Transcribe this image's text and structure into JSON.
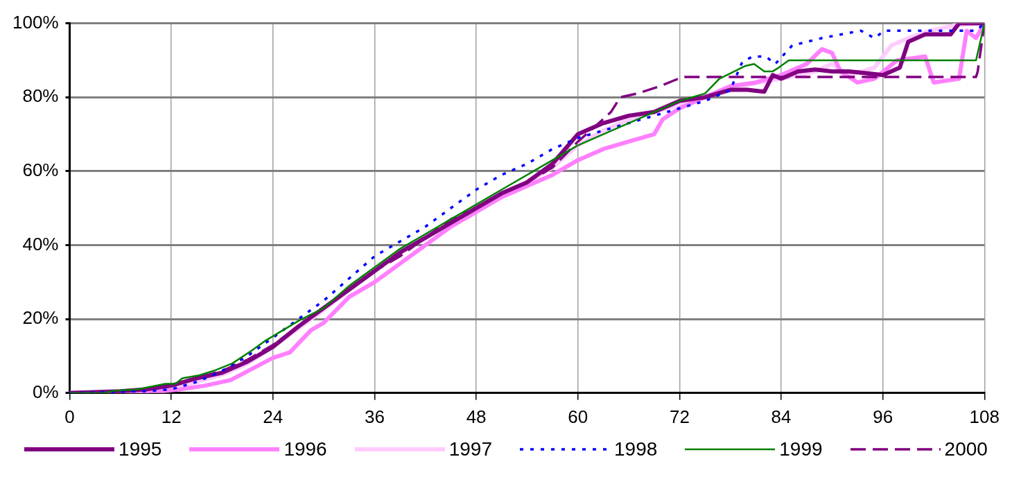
{
  "chart_data": {
    "type": "line",
    "xlim": [
      0,
      108
    ],
    "xticks": [
      0,
      12,
      24,
      36,
      48,
      60,
      72,
      84,
      96,
      108
    ],
    "ylim": [
      0,
      100
    ],
    "yticks": [
      {
        "value": 0,
        "label": "0%"
      },
      {
        "value": 20,
        "label": "20%"
      },
      {
        "value": 40,
        "label": "40%"
      },
      {
        "value": 60,
        "label": "60%"
      },
      {
        "value": 80,
        "label": "80%"
      },
      {
        "value": 100,
        "label": "100%"
      }
    ],
    "grid": true,
    "legend": "bottom",
    "marker": "none",
    "series": [
      {
        "name": "1995",
        "color": "#800080",
        "line_style": "solid",
        "x": [
          0,
          6,
          9,
          12,
          15,
          18,
          21,
          24,
          27,
          30,
          33,
          36,
          39,
          42,
          45,
          48,
          51,
          54,
          57,
          60,
          63,
          66,
          69,
          72,
          75,
          78,
          80,
          82,
          83,
          84,
          86,
          88,
          90,
          92,
          94,
          96,
          98,
          99,
          101,
          104,
          105,
          106,
          108
        ],
        "values": [
          0,
          0.5,
          1,
          2,
          4,
          5.5,
          8.5,
          12.5,
          18,
          23,
          28,
          33,
          38,
          42,
          46,
          50,
          54,
          57,
          62,
          70,
          73,
          75,
          76,
          79,
          80,
          82,
          82,
          81.5,
          86,
          85,
          87,
          87.5,
          87,
          87,
          86.5,
          86,
          88,
          95,
          97,
          97,
          100,
          100,
          100
        ]
      },
      {
        "name": "1996",
        "color": "#ff80ff",
        "line_style": "solid",
        "x": [
          0,
          9,
          13,
          16,
          19,
          21.5,
          24,
          26,
          28.5,
          30,
          33,
          36,
          39,
          42,
          45,
          48,
          51,
          54,
          57,
          60,
          63,
          66,
          69,
          70,
          72,
          75,
          78,
          81,
          84,
          87,
          88.8,
          90,
          91,
          93,
          95,
          97.7,
          101,
          102,
          105,
          105.9,
          107,
          108
        ],
        "values": [
          0,
          0,
          1,
          2,
          3.5,
          6.5,
          9.5,
          11,
          17,
          19,
          26,
          30,
          35,
          40,
          45,
          49,
          53,
          56,
          59,
          63,
          66,
          68,
          70,
          74,
          77,
          80,
          83,
          84,
          86,
          89,
          93,
          92,
          87,
          84,
          85,
          90,
          91,
          84,
          85,
          98,
          96,
          100
        ]
      },
      {
        "name": "1997",
        "color": "#ffccff",
        "line_style": "solid",
        "x": [
          0,
          9,
          12,
          15,
          18,
          21,
          24,
          27,
          30,
          33,
          36,
          39,
          42,
          45,
          48,
          51,
          54,
          57,
          60,
          63,
          66,
          69,
          72,
          76,
          79,
          84,
          88,
          90,
          92,
          95,
          97,
          99,
          101.6,
          104.7,
          108
        ],
        "values": [
          0,
          0.5,
          1.5,
          3,
          5,
          8,
          12.5,
          17.5,
          22.5,
          28,
          33,
          38,
          42,
          46,
          50,
          54,
          57,
          61,
          67,
          71,
          74,
          76,
          78,
          81,
          83,
          85,
          87,
          89,
          86,
          88,
          94,
          96,
          98,
          99.5,
          100
        ]
      },
      {
        "name": "1998",
        "color": "#0000ff",
        "line_style": "dotted",
        "x": [
          0,
          9,
          12,
          15,
          18,
          21,
          24,
          27,
          30,
          33,
          36,
          39,
          42,
          45,
          48,
          51,
          54,
          57,
          60,
          63,
          66,
          69,
          72,
          75,
          78,
          79.4,
          80.6,
          82.2,
          83.3,
          85.3,
          88.8,
          93.4,
          95,
          96.2,
          107,
          108
        ],
        "values": [
          0,
          0.5,
          1,
          3,
          6,
          10,
          15,
          20,
          25,
          31,
          37,
          41,
          45,
          50,
          55,
          59,
          62,
          66,
          69,
          71,
          73,
          75,
          77,
          79,
          82,
          89.5,
          91,
          91,
          89,
          94,
          96,
          98,
          96,
          98,
          98,
          100
        ]
      },
      {
        "name": "1999",
        "color": "#008000",
        "line_style": "solid",
        "x": [
          0,
          4,
          5.2,
          8,
          11.3,
          12.5,
          13.3,
          15.3,
          17,
          19.2,
          21.5,
          23,
          27,
          30,
          33,
          36,
          39,
          42,
          45,
          48,
          51,
          54,
          57,
          60,
          63,
          66,
          69,
          72,
          75,
          76.7,
          79.8,
          80.8,
          82,
          83,
          83.7,
          84.9,
          107,
          108
        ],
        "values": [
          0,
          0,
          0.6,
          1,
          2.5,
          2.5,
          4,
          4.8,
          6,
          8,
          11.5,
          14,
          19.5,
          23,
          29,
          34,
          39,
          43,
          47,
          51,
          55,
          59,
          63,
          67,
          70,
          73,
          76,
          79,
          81,
          85,
          88.5,
          89,
          87,
          87,
          88,
          90,
          90,
          100
        ]
      },
      {
        "name": "2000",
        "color": "#800080",
        "line_style": "dashed",
        "x": [
          0,
          6,
          9,
          12,
          15,
          18,
          21,
          24,
          27,
          30,
          33,
          36,
          39,
          42,
          45,
          48,
          51,
          54,
          57,
          60,
          62,
          63.9,
          65,
          67,
          69.7,
          71.3,
          72.4,
          107,
          107.2,
          108
        ],
        "values": [
          0,
          0.5,
          1,
          2,
          4,
          6,
          9,
          13,
          18,
          23,
          28,
          33,
          37,
          42,
          47,
          50,
          54,
          57,
          61,
          68,
          72,
          76,
          80,
          81,
          83,
          84.5,
          85.5,
          85.5,
          87,
          100
        ]
      }
    ]
  }
}
